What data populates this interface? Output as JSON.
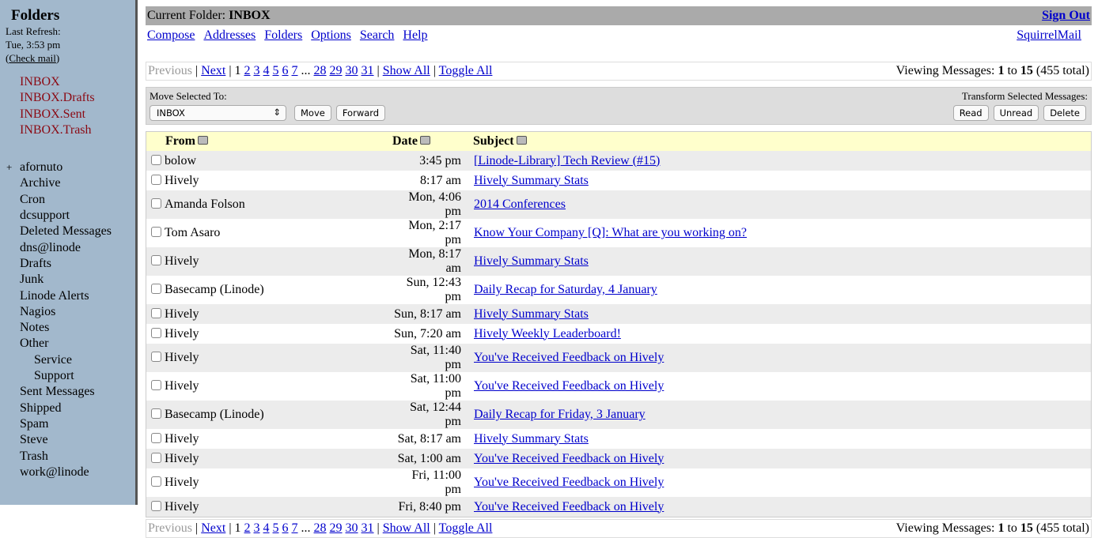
{
  "sidebar": {
    "title": "Folders",
    "last_refresh_label": "Last Refresh:",
    "last_refresh": "Tue, 3:53 pm",
    "check_mail": "Check mail",
    "special": [
      "INBOX",
      "INBOX.Drafts",
      "INBOX.Sent",
      "INBOX.Trash"
    ],
    "folders": [
      {
        "label": "afornuto",
        "expand": "+"
      },
      {
        "label": "Archive"
      },
      {
        "label": "Cron"
      },
      {
        "label": "dcsupport"
      },
      {
        "label": "Deleted Messages"
      },
      {
        "label": "dns@linode"
      },
      {
        "label": "Drafts"
      },
      {
        "label": "Junk"
      },
      {
        "label": "Linode Alerts"
      },
      {
        "label": "Nagios"
      },
      {
        "label": "Notes"
      },
      {
        "label": "Other"
      },
      {
        "label": "Service",
        "sub": true
      },
      {
        "label": "Support",
        "sub": true
      },
      {
        "label": "Sent Messages"
      },
      {
        "label": "Shipped"
      },
      {
        "label": "Spam"
      },
      {
        "label": "Steve"
      },
      {
        "label": "Trash"
      },
      {
        "label": "work@linode"
      }
    ]
  },
  "header": {
    "current_label": "Current Folder:",
    "current": "INBOX",
    "sign_out": "Sign Out",
    "brand": "SquirrelMail",
    "nav": [
      "Compose",
      "Addresses",
      "Folders",
      "Options",
      "Search",
      "Help"
    ]
  },
  "paging": {
    "previous": "Previous",
    "next": "Next",
    "current": "1",
    "pages": [
      "2",
      "3",
      "4",
      "5",
      "6",
      "7"
    ],
    "ellipsis": "...",
    "pages_end": [
      "28",
      "29",
      "30",
      "31"
    ],
    "show_all": "Show All",
    "toggle_all": "Toggle All",
    "viewing_label": "Viewing Messages:",
    "from": "1",
    "to_label": "to",
    "to": "15",
    "total": "(455 total)"
  },
  "actions": {
    "move_label": "Move Selected To:",
    "move_target": "INBOX",
    "move": "Move",
    "forward": "Forward",
    "transform_label": "Transform Selected Messages:",
    "read": "Read",
    "unread": "Unread",
    "delete": "Delete"
  },
  "table": {
    "headers": {
      "from": "From",
      "date": "Date",
      "subject": "Subject"
    },
    "rows": [
      {
        "from": "bolow",
        "date": "3:45 pm",
        "subject": "[Linode-Library] Tech Review (#15)"
      },
      {
        "from": "Hively",
        "date": "8:17 am",
        "subject": "Hively Summary Stats"
      },
      {
        "from": "Amanda Folson",
        "date": "Mon, 4:06 pm",
        "subject": "2014 Conferences"
      },
      {
        "from": "Tom Asaro",
        "date": "Mon, 2:17 pm",
        "subject": "Know Your Company [Q]: What are you working on?"
      },
      {
        "from": "Hively",
        "date": "Mon, 8:17 am",
        "subject": "Hively Summary Stats"
      },
      {
        "from": "Basecamp (Linode)",
        "date": "Sun, 12:43 pm",
        "subject": "Daily Recap for Saturday, 4 January"
      },
      {
        "from": "Hively",
        "date": "Sun, 8:17 am",
        "subject": "Hively Summary Stats"
      },
      {
        "from": "Hively",
        "date": "Sun, 7:20 am",
        "subject": "Hively Weekly Leaderboard!"
      },
      {
        "from": "Hively",
        "date": "Sat, 11:40 pm",
        "subject": "You've Received Feedback on Hively"
      },
      {
        "from": "Hively",
        "date": "Sat, 11:00 pm",
        "subject": "You've Received Feedback on Hively"
      },
      {
        "from": "Basecamp (Linode)",
        "date": "Sat, 12:44 pm",
        "subject": "Daily Recap for Friday, 3 January"
      },
      {
        "from": "Hively",
        "date": "Sat, 8:17 am",
        "subject": "Hively Summary Stats"
      },
      {
        "from": "Hively",
        "date": "Sat, 1:00 am",
        "subject": "You've Received Feedback on Hively"
      },
      {
        "from": "Hively",
        "date": "Fri, 11:00 pm",
        "subject": "You've Received Feedback on Hively"
      },
      {
        "from": "Hively",
        "date": "Fri, 8:40 pm",
        "subject": "You've Received Feedback on Hively"
      }
    ]
  }
}
